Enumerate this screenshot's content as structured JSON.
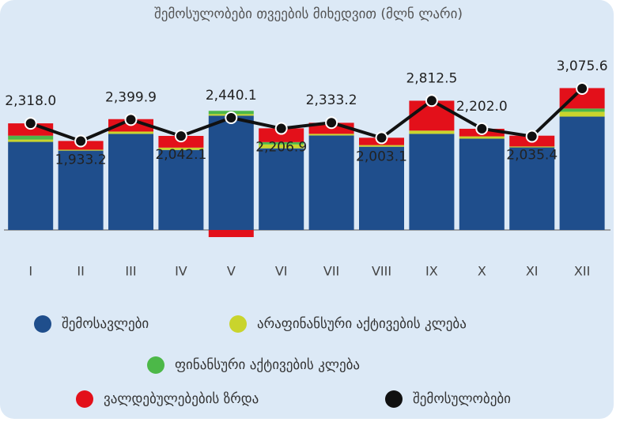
{
  "chart_data": {
    "type": "bar",
    "title": "შემოსულობები თვეების მიხედვით (მლნ ლარი)",
    "categories": [
      "I",
      "II",
      "III",
      "IV",
      "V",
      "VI",
      "VII",
      "VIII",
      "IX",
      "X",
      "XI",
      "XII"
    ],
    "stacked": true,
    "series": [
      {
        "name": "შემოსავლები",
        "color": "#1f4e8c",
        "values": [
          1915,
          1725,
          2090,
          1740,
          2485,
          1775,
          2055,
          1810,
          2090,
          1985,
          1795,
          2465
        ]
      },
      {
        "name": "არაფინანსური აქტივების კლება",
        "color": "#c9d42c",
        "values": [
          50,
          20,
          50,
          50,
          35,
          85,
          35,
          35,
          70,
          50,
          20,
          105
        ]
      },
      {
        "name": "ფინანსური აქტივების კლება",
        "color": "#4cb848",
        "values": [
          85,
          0,
          0,
          0,
          70,
          50,
          0,
          0,
          0,
          0,
          0,
          70
        ]
      },
      {
        "name": "ვალდებულებების ზრდა",
        "color": "#e3101a",
        "values": [
          268,
          190,
          270,
          255,
          -155,
          300,
          240,
          160,
          650,
          165,
          235,
          445
        ]
      },
      {
        "name": "შემოსულობები",
        "color": "#111111",
        "type": "line",
        "values": [
          2318.0,
          1933.2,
          2399.9,
          2042.1,
          2440.1,
          2206.9,
          2333.2,
          2003.1,
          2812.5,
          2202.0,
          2035.4,
          3075.6
        ],
        "value_labels": [
          "2,318.0",
          "1,933.2",
          "2,399.9",
          "2,042.1",
          "2,440.1",
          "2,206.9",
          "2,333.2",
          "2,003.1",
          "2,812.5",
          "2,202.0",
          "2,035.4",
          "3,075.6"
        ]
      }
    ]
  }
}
